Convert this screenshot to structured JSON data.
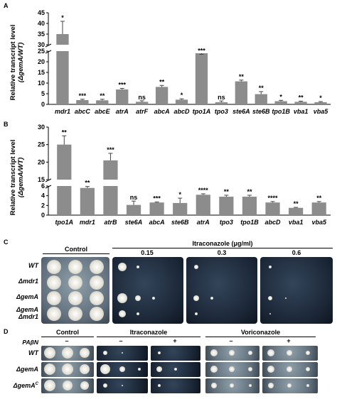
{
  "panels": {
    "A": {
      "letter": "A",
      "ylabel_line1": "Relative transcript level",
      "ylabel_line2": "(ΔgemA/WT)",
      "y_ticks_upper": [
        "45",
        "40",
        "35",
        "30"
      ],
      "y_ticks_lower": [
        "25",
        "20",
        "15",
        "10",
        "5",
        "0"
      ],
      "chart_data": {
        "type": "bar",
        "categories": [
          "mdr1",
          "abcC",
          "abcE",
          "atrA",
          "atrF",
          "abcA",
          "abcD",
          "tpo1A",
          "tpo3",
          "ste6A",
          "ste6B",
          "tpo1B",
          "vba1",
          "vba5"
        ],
        "values": [
          35,
          2.0,
          1.9,
          7.0,
          1.2,
          8.2,
          2.2,
          24.0,
          1.0,
          10.8,
          4.8,
          1.5,
          1.2,
          1.0
        ],
        "errors": [
          6,
          0.4,
          0.5,
          0.5,
          0.5,
          0.7,
          0.4,
          1.5,
          0.6,
          0.6,
          1.2,
          0.4,
          0.3,
          0.3
        ],
        "significance": [
          "*",
          "***",
          "**",
          "***",
          "ns",
          "**",
          "*",
          "***",
          "ns",
          "**",
          "**",
          "*",
          "**",
          "*"
        ],
        "ylim": [
          0,
          45
        ],
        "axis_break": [
          25,
          30
        ]
      }
    },
    "B": {
      "letter": "B",
      "ylabel_line1": "Relative transcript level",
      "ylabel_line2": "(ΔgemA/WT)",
      "y_ticks_upper": [
        "30",
        "25",
        "20",
        "15"
      ],
      "y_ticks_lower": [
        "6",
        "4",
        "2",
        "0"
      ],
      "chart_data": {
        "type": "bar",
        "categories": [
          "tpo1A",
          "mdr1",
          "atrB",
          "ste6A",
          "abcA",
          "ste6B",
          "atrA",
          "tpo3",
          "tpo1B",
          "abcD",
          "vba1",
          "vba5"
        ],
        "values": [
          25,
          5.6,
          20.5,
          2.1,
          2.6,
          2.5,
          4.2,
          3.8,
          3.8,
          2.6,
          1.5,
          2.6
        ],
        "errors": [
          2.5,
          0.3,
          2.0,
          0.8,
          0.1,
          1.0,
          0.2,
          0.3,
          0.3,
          0.2,
          0.1,
          0.2
        ],
        "significance": [
          "**",
          "**",
          "***",
          "ns",
          "***",
          "*",
          "****",
          "**",
          "**",
          "****",
          "**",
          "**"
        ],
        "ylim": [
          0,
          30
        ],
        "axis_break": [
          6,
          15
        ]
      }
    },
    "C": {
      "letter": "C",
      "control_label": "Control",
      "drug_label": "Itraconazole (μg/ml)",
      "concentrations": [
        "0.15",
        "0.3",
        "0.6"
      ],
      "rows": [
        "WT",
        "Δmdr1",
        "ΔgemA",
        "ΔgemA",
        "Δmdr1"
      ]
    },
    "D": {
      "letter": "D",
      "treatment_label": "PAβN",
      "control_label": "Control",
      "itra_label": "Itraconazole",
      "vori_label": "Voriconazole",
      "minus": "–",
      "plus": "+",
      "rows": [
        "WT",
        "ΔgemA",
        "ΔgemA"
      ],
      "row3_superscript": "C"
    }
  },
  "colors": {
    "bar": "#8c8c8c",
    "plate_dark": "#1d2a3c",
    "plate_light": "#6b7a86",
    "colony": "#eeeeea"
  }
}
